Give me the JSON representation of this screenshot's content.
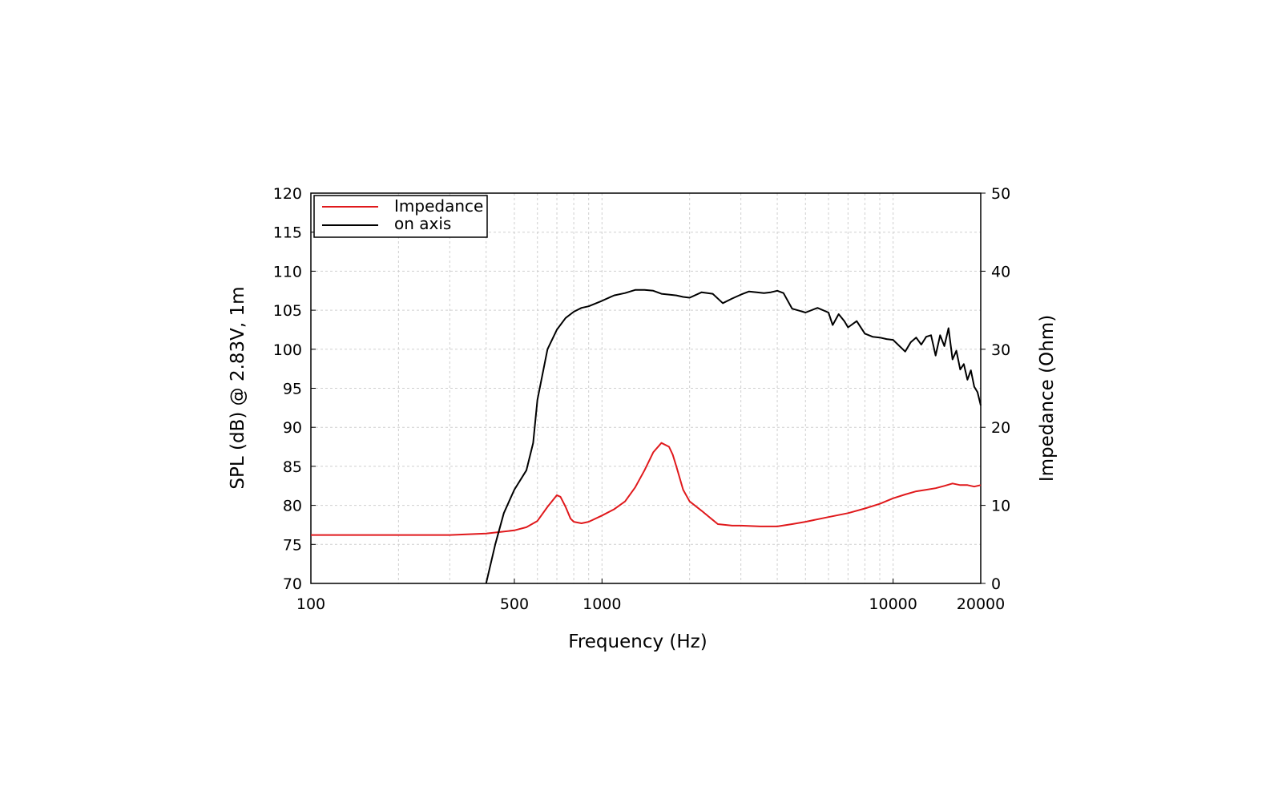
{
  "chart_data": {
    "type": "line",
    "xlabel": "Frequency (Hz)",
    "ylabel": "SPL (dB) @ 2.83V, 1m",
    "ylabel_right": "Impedance (Ohm)",
    "x_scale": "log",
    "xlim": [
      100,
      20000
    ],
    "ylim": [
      70,
      120
    ],
    "ylim_right": [
      0,
      50
    ],
    "x_ticks": [
      {
        "value": 100,
        "label": "100"
      },
      {
        "value": 500,
        "label": "500"
      },
      {
        "value": 1000,
        "label": "1000"
      },
      {
        "value": 10000,
        "label": "10000"
      },
      {
        "value": 20000,
        "label": "20000"
      }
    ],
    "y_ticks": [
      "70",
      "75",
      "80",
      "85",
      "90",
      "95",
      "100",
      "105",
      "110",
      "115",
      "120"
    ],
    "y_ticks_right": [
      "0",
      "10",
      "20",
      "30",
      "40",
      "50"
    ],
    "grid": true,
    "legend_position": "top-left",
    "series": [
      {
        "name": "Impedance",
        "axis": "right",
        "color": "#e0191c",
        "x": [
          100,
          200,
          300,
          400,
          500,
          550,
          600,
          650,
          700,
          720,
          750,
          780,
          800,
          850,
          900,
          1000,
          1100,
          1200,
          1300,
          1400,
          1500,
          1600,
          1700,
          1750,
          1800,
          1900,
          2000,
          2200,
          2500,
          2800,
          3000,
          3500,
          4000,
          4500,
          5000,
          6000,
          7000,
          8000,
          9000,
          10000,
          11000,
          12000,
          13000,
          14000,
          15000,
          16000,
          17000,
          18000,
          19000,
          20000
        ],
        "y": [
          6.2,
          6.2,
          6.2,
          6.4,
          6.8,
          7.2,
          8.0,
          9.8,
          11.3,
          11.1,
          9.8,
          8.3,
          7.9,
          7.7,
          7.9,
          8.7,
          9.5,
          10.5,
          12.3,
          14.5,
          16.8,
          18.0,
          17.5,
          16.5,
          15.0,
          12.0,
          10.5,
          9.3,
          7.6,
          7.4,
          7.4,
          7.3,
          7.3,
          7.6,
          7.9,
          8.5,
          9.0,
          9.6,
          10.2,
          10.9,
          11.4,
          11.8,
          12.0,
          12.2,
          12.5,
          12.8,
          12.6,
          12.6,
          12.4,
          12.6
        ]
      },
      {
        "name": "on axis",
        "axis": "left",
        "color": "#000000",
        "x": [
          400,
          430,
          460,
          500,
          550,
          580,
          600,
          650,
          700,
          750,
          800,
          850,
          900,
          1000,
          1100,
          1200,
          1300,
          1400,
          1500,
          1600,
          1700,
          1800,
          1900,
          2000,
          2200,
          2400,
          2600,
          2800,
          3000,
          3200,
          3400,
          3600,
          3800,
          4000,
          4200,
          4500,
          4800,
          5000,
          5500,
          6000,
          6200,
          6500,
          6800,
          7000,
          7500,
          8000,
          8500,
          9000,
          9500,
          10000,
          11000,
          11500,
          12000,
          12500,
          13000,
          13500,
          14000,
          14500,
          15000,
          15500,
          16000,
          16500,
          17000,
          17500,
          18000,
          18500,
          19000,
          19500,
          20000
        ],
        "y": [
          70,
          75,
          79,
          82,
          84.5,
          88,
          93.5,
          100,
          102.5,
          104,
          104.8,
          105.3,
          105.5,
          106.2,
          106.9,
          107.2,
          107.6,
          107.6,
          107.5,
          107.1,
          107.0,
          106.9,
          106.7,
          106.6,
          107.3,
          107.1,
          105.9,
          106.5,
          107.0,
          107.4,
          107.3,
          107.2,
          107.3,
          107.5,
          107.2,
          105.2,
          104.9,
          104.7,
          105.3,
          104.7,
          103.1,
          104.5,
          103.6,
          102.8,
          103.6,
          102.0,
          101.6,
          101.5,
          101.3,
          101.2,
          99.7,
          100.9,
          101.5,
          100.6,
          101.6,
          101.8,
          99.2,
          101.8,
          100.4,
          102.7,
          98.7,
          99.8,
          97.4,
          98.1,
          96.1,
          97.3,
          95.2,
          94.5,
          92.8
        ]
      }
    ]
  }
}
